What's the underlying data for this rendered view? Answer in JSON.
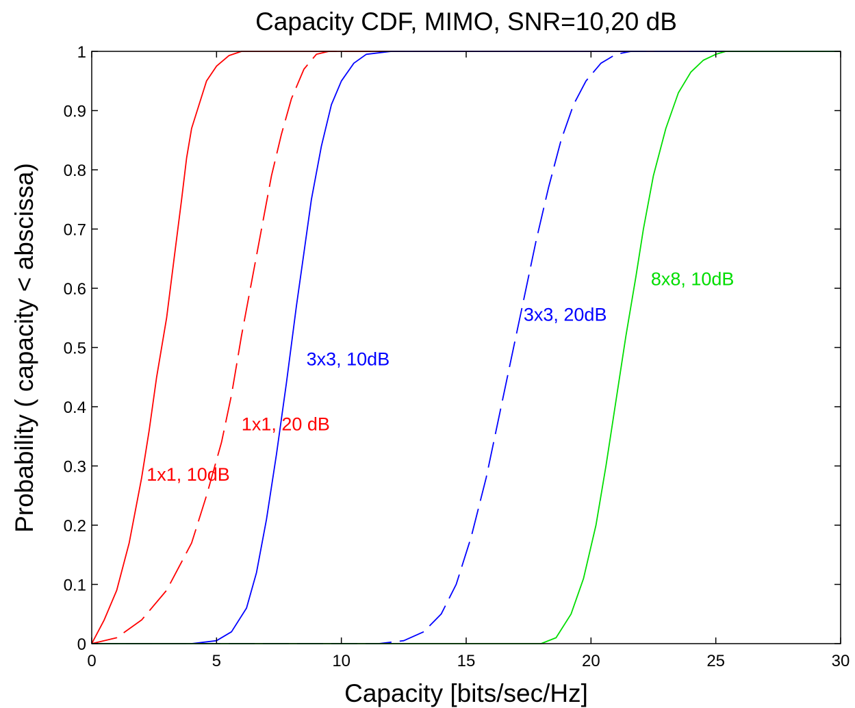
{
  "chart_data": {
    "type": "line",
    "title": "Capacity CDF, MIMO, SNR=10,20 dB",
    "xlabel": "Capacity [bits/sec/Hz]",
    "ylabel": "Probability ( capacity < abscissa)",
    "xlim": [
      0,
      30
    ],
    "ylim": [
      0,
      1
    ],
    "xticks": [
      0,
      5,
      10,
      15,
      20,
      25,
      30
    ],
    "xtick_labels": [
      "0",
      "5",
      "10",
      "15",
      "20",
      "25",
      "30"
    ],
    "yticks": [
      0,
      0.1,
      0.2,
      0.3,
      0.4,
      0.5,
      0.6,
      0.7,
      0.8,
      0.9,
      1
    ],
    "ytick_labels": [
      "0",
      "0.1",
      "0.2",
      "0.3",
      "0.4",
      "0.5",
      "0.6",
      "0.7",
      "0.8",
      "0.9",
      "1"
    ],
    "grid": false,
    "series": [
      {
        "color": "#ff0000",
        "dash": "solid",
        "x": [
          0,
          0.5,
          1,
          1.5,
          2,
          2.3,
          2.6,
          3,
          3.3,
          3.6,
          3.8,
          4,
          4.3,
          4.6,
          5,
          5.5,
          6,
          7,
          30
        ],
        "y": [
          0,
          0.04,
          0.09,
          0.17,
          0.28,
          0.36,
          0.45,
          0.55,
          0.65,
          0.75,
          0.82,
          0.87,
          0.91,
          0.95,
          0.975,
          0.993,
          1,
          1,
          1
        ]
      },
      {
        "color": "#ff0000",
        "dash": "dashed",
        "x": [
          0,
          1,
          2,
          3,
          4,
          4.6,
          5.2,
          5.6,
          6,
          6.4,
          6.8,
          7.2,
          7.6,
          8,
          8.5,
          9,
          9.5,
          30
        ],
        "y": [
          0,
          0.01,
          0.04,
          0.09,
          0.17,
          0.25,
          0.34,
          0.42,
          0.52,
          0.61,
          0.7,
          0.79,
          0.86,
          0.92,
          0.97,
          0.995,
          1,
          1
        ]
      },
      {
        "color": "#0000ff",
        "dash": "solid",
        "x": [
          0,
          4,
          5,
          5.6,
          6.2,
          6.6,
          7,
          7.4,
          7.8,
          8.2,
          8.5,
          8.8,
          9.2,
          9.6,
          10,
          10.5,
          11,
          12,
          30
        ],
        "y": [
          0,
          0,
          0.005,
          0.02,
          0.06,
          0.12,
          0.21,
          0.32,
          0.44,
          0.57,
          0.66,
          0.75,
          0.84,
          0.91,
          0.95,
          0.98,
          0.995,
          1,
          1
        ]
      },
      {
        "color": "#0000ff",
        "dash": "dashed",
        "x": [
          0,
          11.5,
          12.5,
          13.3,
          14,
          14.6,
          15.2,
          15.8,
          16.3,
          16.8,
          17.3,
          17.8,
          18.3,
          18.8,
          19.3,
          19.8,
          20.4,
          21,
          21.6,
          30
        ],
        "y": [
          0,
          0,
          0.005,
          0.02,
          0.05,
          0.1,
          0.18,
          0.28,
          0.38,
          0.48,
          0.58,
          0.68,
          0.77,
          0.85,
          0.91,
          0.95,
          0.98,
          0.995,
          1,
          1
        ]
      },
      {
        "color": "#00dd00",
        "dash": "solid",
        "x": [
          0,
          18,
          18.6,
          19.2,
          19.7,
          20.2,
          20.6,
          21,
          21.4,
          21.8,
          22.1,
          22.5,
          23,
          23.5,
          24,
          24.5,
          25,
          25.4,
          30
        ],
        "y": [
          0,
          0,
          0.01,
          0.05,
          0.11,
          0.2,
          0.3,
          0.41,
          0.52,
          0.62,
          0.7,
          0.79,
          0.87,
          0.93,
          0.965,
          0.985,
          0.995,
          1,
          1
        ]
      }
    ],
    "annotations": [
      {
        "text": "1x1, 10dB",
        "x": 2.2,
        "y": 0.275,
        "color": "#ff0000"
      },
      {
        "text": "1x1, 20 dB",
        "x": 6.0,
        "y": 0.36,
        "color": "#ff0000"
      },
      {
        "text": "3x3, 10dB",
        "x": 8.6,
        "y": 0.47,
        "color": "#0000ff"
      },
      {
        "text": "3x3, 20dB",
        "x": 17.3,
        "y": 0.545,
        "color": "#0000ff"
      },
      {
        "text": "8x8, 10dB",
        "x": 22.4,
        "y": 0.605,
        "color": "#00dd00"
      }
    ]
  }
}
